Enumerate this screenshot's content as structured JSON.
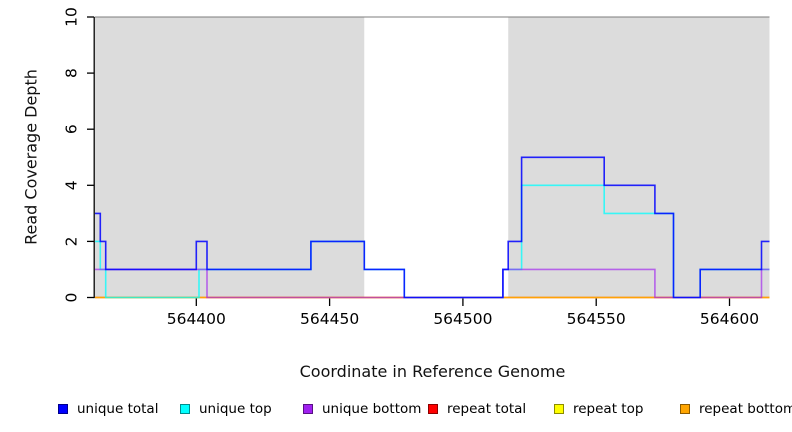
{
  "figure": {
    "background": "#ffffff"
  },
  "chart_data": {
    "type": "line",
    "subtype": "step-coverage",
    "title": "",
    "xlabel": "Coordinate in Reference Genome",
    "ylabel": "Read Coverage Depth",
    "xlim": [
      564362,
      564615
    ],
    "ylim": [
      0,
      10
    ],
    "x_ticks": [
      564400,
      564450,
      564500,
      564550,
      564600
    ],
    "y_ticks": [
      0,
      2,
      4,
      6,
      8,
      10
    ],
    "grid": false,
    "legend_position": "bottom",
    "shade_color": "#DCDCDC",
    "shaded_regions": [
      {
        "from": 564362,
        "to": 564463
      },
      {
        "from": 564517,
        "to": 564615
      }
    ],
    "series": [
      {
        "name": "unique total",
        "color": "#0000FF",
        "steps": [
          [
            564362,
            3
          ],
          [
            564364,
            2
          ],
          [
            564366,
            1
          ],
          [
            564400,
            2
          ],
          [
            564404,
            1
          ],
          [
            564443,
            2
          ],
          [
            564463,
            1
          ],
          [
            564478,
            0
          ],
          [
            564515,
            1
          ],
          [
            564517,
            2
          ],
          [
            564522,
            5
          ],
          [
            564553,
            4
          ],
          [
            564572,
            3
          ],
          [
            564579,
            0
          ],
          [
            564589,
            1
          ],
          [
            564612,
            2
          ],
          [
            564615,
            2
          ]
        ]
      },
      {
        "name": "unique top",
        "color": "#00FFFF",
        "steps": [
          [
            564362,
            2
          ],
          [
            564364,
            1
          ],
          [
            564366,
            0
          ],
          [
            564401,
            1
          ],
          [
            564443,
            2
          ],
          [
            564463,
            1
          ],
          [
            564478,
            0
          ],
          [
            564515,
            1
          ],
          [
            564522,
            4
          ],
          [
            564553,
            3
          ],
          [
            564579,
            0
          ],
          [
            564589,
            1
          ],
          [
            564615,
            1
          ]
        ]
      },
      {
        "name": "unique bottom",
        "color": "#A020F0",
        "steps": [
          [
            564362,
            1
          ],
          [
            564404,
            0
          ],
          [
            564515,
            1
          ],
          [
            564572,
            0
          ],
          [
            564612,
            1
          ],
          [
            564615,
            1
          ]
        ]
      },
      {
        "name": "repeat total",
        "color": "#FF0000",
        "steps": [
          [
            564362,
            0
          ],
          [
            564615,
            0
          ]
        ]
      },
      {
        "name": "repeat top",
        "color": "#FFFF00",
        "steps": [
          [
            564362,
            0
          ],
          [
            564615,
            0
          ]
        ]
      },
      {
        "name": "repeat bottom",
        "color": "#FFA500",
        "steps": [
          [
            564362,
            0
          ],
          [
            564615,
            0
          ]
        ]
      }
    ]
  }
}
